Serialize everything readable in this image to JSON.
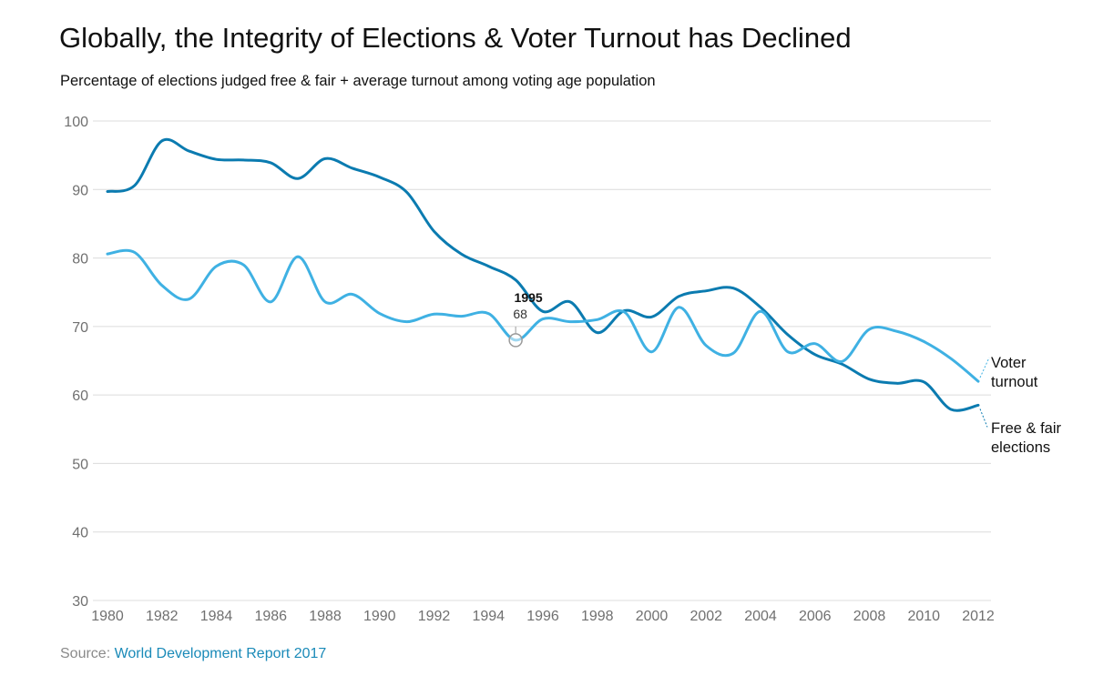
{
  "header": {
    "title": "Globally, the Integrity of Elections & Voter Turnout has Declined",
    "subtitle": "Percentage of elections judged free & fair + average turnout among voting age population"
  },
  "footer": {
    "source_prefix": "Source:",
    "source_link": "World Development Report 2017"
  },
  "colors": {
    "free_fair": "#0b7bb0",
    "turnout": "#3fb1e3"
  },
  "tooltip": {
    "year": "1995",
    "value": "68"
  },
  "chart_data": {
    "type": "line",
    "title": "Globally, the Integrity of Elections & Voter Turnout has Declined",
    "subtitle": "Percentage of elections judged free & fair + average turnout among voting age population",
    "xlabel": "",
    "ylabel": "",
    "xlim": [
      1980,
      2012
    ],
    "ylim": [
      30,
      100
    ],
    "grid": true,
    "yticks": [
      30,
      40,
      50,
      60,
      70,
      80,
      90,
      100
    ],
    "xticks": [
      1980,
      1982,
      1984,
      1986,
      1988,
      1990,
      1992,
      1994,
      1996,
      1998,
      2000,
      2002,
      2004,
      2006,
      2008,
      2010,
      2012
    ],
    "x": [
      1980,
      1981,
      1982,
      1983,
      1984,
      1985,
      1986,
      1987,
      1988,
      1989,
      1990,
      1991,
      1992,
      1993,
      1994,
      1995,
      1996,
      1997,
      1998,
      1999,
      2000,
      2001,
      2002,
      2003,
      2004,
      2005,
      2006,
      2007,
      2008,
      2009,
      2010,
      2011,
      2012
    ],
    "series": [
      {
        "name": "Free & fair elections",
        "label_lines": [
          "Free & fair",
          "elections"
        ],
        "values": [
          89.7,
          90.6,
          97.1,
          95.6,
          94.4,
          94.3,
          93.9,
          91.6,
          94.5,
          93.1,
          91.8,
          89.6,
          83.9,
          80.6,
          78.8,
          76.8,
          72.2,
          73.6,
          69.1,
          72.3,
          71.4,
          74.4,
          75.2,
          75.6,
          72.8,
          68.8,
          65.9,
          64.5,
          62.3,
          61.7,
          61.9,
          57.9,
          58.5
        ]
      },
      {
        "name": "Voter turnout",
        "label_lines": [
          "Voter",
          "turnout"
        ],
        "values": [
          80.6,
          80.8,
          76.0,
          74.0,
          78.8,
          79.0,
          73.6,
          80.2,
          73.6,
          74.7,
          71.9,
          70.7,
          71.8,
          71.5,
          71.9,
          68.0,
          71.1,
          70.7,
          71.0,
          72.1,
          66.3,
          72.8,
          67.2,
          66.1,
          72.2,
          66.3,
          67.5,
          64.9,
          69.6,
          69.3,
          67.8,
          65.3,
          62.0
        ]
      }
    ]
  }
}
